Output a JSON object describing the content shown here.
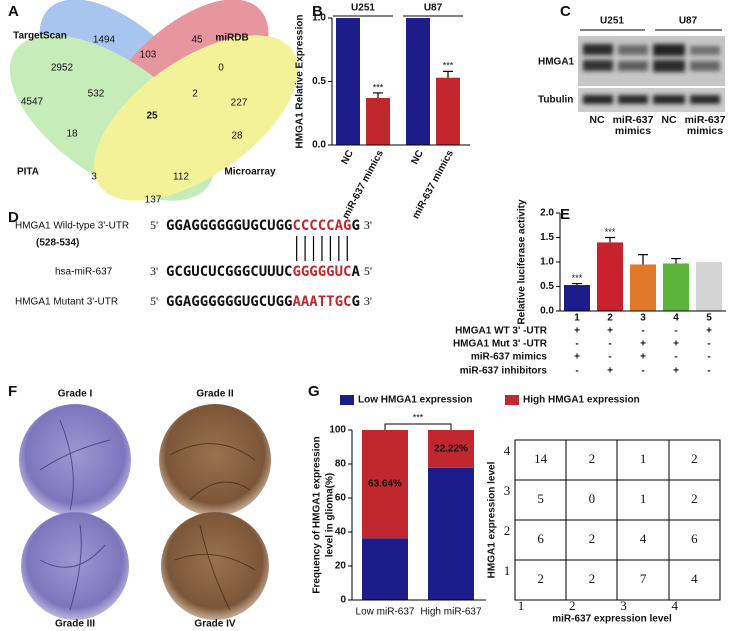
{
  "panel_labels": [
    "A",
    "B",
    "C",
    "D",
    "E",
    "F",
    "G"
  ],
  "venn": {
    "sets": [
      "TargetScan",
      "miRDB",
      "PITA",
      "Microarray"
    ],
    "counts": [
      1494,
      45,
      103,
      2952,
      0,
      532,
      2,
      4547,
      227,
      25,
      18,
      28,
      3,
      112,
      137
    ]
  },
  "western": {
    "cell_lines": [
      "U251",
      "U87"
    ],
    "proteins": [
      "HMGA1",
      "Tubulin"
    ],
    "lanes": [
      "NC",
      "miR-637 mimics",
      "NC",
      "miR-637 mimics"
    ]
  },
  "sequences": {
    "wild_type": {
      "label": "HMGA1 Wild-type 3'-UTR",
      "position": "(528-534)",
      "start": "5'",
      "seq": [
        "GGAGGGGGGUGCUGG",
        "CCCCCAG",
        "G"
      ],
      "end": "3'"
    },
    "mirna": {
      "label": "hsa-miR-637",
      "start": "3'",
      "seq": [
        "GCGUCUCGGGCUUUC",
        "GGGGGUC",
        "A"
      ],
      "end": "5'"
    },
    "mutant": {
      "label": "HMGA1 Mutant 3'-UTR",
      "start": "5'",
      "seq": [
        "GGAGGGGGGUGCUGG",
        "AAATTGC",
        "G"
      ],
      "end": "3'"
    }
  },
  "ihc": {
    "grades": [
      "Grade I",
      "Grade II",
      "Grade III",
      "Grade IV"
    ]
  },
  "chart_data": [
    {
      "type": "bar",
      "ylabel": "HMGA1 Relative Expression",
      "groups": [
        "U251",
        "U87"
      ],
      "categories": [
        "NC",
        "miR-637 mimics",
        "NC",
        "miR-637 mimics"
      ],
      "values": [
        1.0,
        0.37,
        1.0,
        0.53
      ],
      "errors": [
        null,
        0.04,
        null,
        0.05
      ],
      "colors": [
        "#1c1c8a",
        "#c0282d",
        "#1c1c8a",
        "#c0282d"
      ],
      "annotations": [
        null,
        "***",
        null,
        "***"
      ],
      "ylim": [
        0,
        1.0
      ],
      "yticks": [
        {
          "value": 0,
          "label": "0.0"
        },
        {
          "value": 0.5,
          "label": "0.5"
        },
        {
          "value": 1.0,
          "label": "1.0"
        }
      ]
    },
    {
      "type": "bar",
      "ylabel": "Relative luciferase activity",
      "categories": [
        "1",
        "2",
        "3",
        "4",
        "5"
      ],
      "values": [
        0.53,
        1.4,
        0.95,
        0.97,
        1.0
      ],
      "errors": [
        0.03,
        0.1,
        0.2,
        0.1,
        null
      ],
      "colors": [
        "#1c1c8a",
        "#c8232c",
        "#e07a2a",
        "#5cb53a",
        "#d4d4d4"
      ],
      "annotations": [
        "***",
        "***",
        null,
        null,
        null
      ],
      "ylim": [
        0,
        2.0
      ],
      "yticks": [
        {
          "value": 0,
          "label": "0.0"
        },
        {
          "value": 0.5,
          "label": "0.5"
        },
        {
          "value": 1.0,
          "label": "1.0"
        },
        {
          "value": 1.5,
          "label": "1.5"
        },
        {
          "value": 2.0,
          "label": "2.0"
        }
      ],
      "conditions": [
        {
          "name": "HMGA1 WT 3' -UTR",
          "signs": [
            "+",
            "+",
            "-",
            "-",
            "+"
          ]
        },
        {
          "name": "HMGA1 Mut 3' -UTR",
          "signs": [
            "-",
            "-",
            "+",
            "+",
            "-"
          ]
        },
        {
          "name": "miR-637 mimics",
          "signs": [
            "+",
            "-",
            "+",
            "-",
            "-"
          ]
        },
        {
          "name": "miR-637 inhibitors",
          "signs": [
            "-",
            "+",
            "-",
            "+",
            "-"
          ]
        }
      ]
    },
    {
      "type": "stacked_bar",
      "ylabel": [
        "Frequency of HMGA1 expression",
        "level in glioma(%)"
      ],
      "categories": [
        "Low miR-637",
        "High miR-637"
      ],
      "series": [
        {
          "name": "Low HMGA1 expression",
          "color": "#1c1c8a",
          "values": [
            36.36,
            77.78
          ]
        },
        {
          "name": "High HMGA1 expression",
          "color": "#c0282d",
          "values": [
            63.64,
            22.22
          ],
          "value_labels": [
            "63.64%",
            "22.22%"
          ]
        }
      ],
      "annotation": "***",
      "ylim": [
        0,
        100
      ],
      "yticks": [
        0,
        20,
        40,
        60,
        80,
        100
      ]
    }
  ],
  "matrix": {
    "ylabel": "HMGA1 expression level",
    "xlabel": "miR-637 expression level",
    "row_labels": [
      "4",
      "3",
      "2",
      "1"
    ],
    "col_labels": [
      "1",
      "2",
      "3",
      "4"
    ],
    "cells": [
      [
        14,
        2,
        1,
        2
      ],
      [
        5,
        0,
        1,
        2
      ],
      [
        6,
        2,
        4,
        6
      ],
      [
        2,
        2,
        7,
        4
      ]
    ]
  }
}
